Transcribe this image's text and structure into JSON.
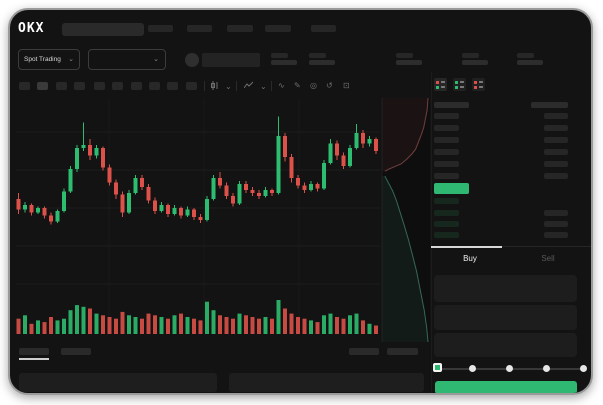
{
  "header": {
    "logo_text": "OKX"
  },
  "trading_controls": {
    "market_selector_label": "Spot Trading"
  },
  "order_panel": {
    "buy_tab_label": "Buy",
    "sell_tab_label": "Sell",
    "slider_steps": 5
  },
  "order_book": {
    "ask_rows": 6,
    "bid_rows": 4,
    "bid_right_bars": [
      false,
      true,
      true,
      true
    ]
  },
  "icons": {
    "chevron_down": "⌄",
    "wave": "∿",
    "pencil": "✎",
    "camera": "◎",
    "history": "↺",
    "fullscreen": "⊡"
  },
  "colors": {
    "accent_green": "#2eb872",
    "candle_up": "#2ebd70",
    "candle_down": "#dc5149",
    "depth_ask_line": "#8a4a4a",
    "depth_bid_line": "#3f7d6d",
    "depth_ask_fill": "rgba(150,70,70,0.10)",
    "depth_bid_fill": "rgba(60,150,120,0.10)",
    "bid_row_bar": "#16281e",
    "grid": "#1d1d1d"
  },
  "chart_data": {
    "type": "candlestick",
    "title": "",
    "xlabel": "",
    "ylabel": "",
    "grid": true,
    "legend_position": "none",
    "price_scale": [
      0,
      100
    ],
    "candles": [
      [
        38,
        42,
        28,
        31
      ],
      [
        31,
        36,
        29,
        34
      ],
      [
        34,
        35,
        27,
        29
      ],
      [
        29,
        33,
        28,
        32
      ],
      [
        32,
        33,
        25,
        27
      ],
      [
        27,
        29,
        21,
        23
      ],
      [
        23,
        31,
        22,
        30
      ],
      [
        30,
        45,
        29,
        43
      ],
      [
        43,
        60,
        42,
        58
      ],
      [
        58,
        74,
        56,
        72
      ],
      [
        72,
        89,
        70,
        74
      ],
      [
        74,
        78,
        64,
        67
      ],
      [
        67,
        74,
        65,
        72
      ],
      [
        72,
        73,
        57,
        59
      ],
      [
        59,
        61,
        47,
        49
      ],
      [
        49,
        51,
        38,
        41
      ],
      [
        41,
        43,
        26,
        29
      ],
      [
        29,
        44,
        28,
        42
      ],
      [
        42,
        54,
        41,
        52
      ],
      [
        52,
        54,
        44,
        46
      ],
      [
        46,
        48,
        35,
        37
      ],
      [
        37,
        39,
        28,
        30
      ],
      [
        30,
        36,
        29,
        34
      ],
      [
        34,
        35,
        26,
        28
      ],
      [
        28,
        34,
        27,
        32
      ],
      [
        32,
        33,
        25,
        27
      ],
      [
        27,
        33,
        26,
        31
      ],
      [
        31,
        32,
        24,
        26
      ],
      [
        26,
        28,
        22,
        24
      ],
      [
        24,
        40,
        23,
        38
      ],
      [
        38,
        54,
        37,
        52
      ],
      [
        52,
        56,
        45,
        47
      ],
      [
        47,
        49,
        38,
        40
      ],
      [
        40,
        42,
        33,
        35
      ],
      [
        35,
        50,
        34,
        48
      ],
      [
        48,
        50,
        42,
        44
      ],
      [
        44,
        46,
        40,
        42
      ],
      [
        42,
        44,
        38,
        40
      ],
      [
        40,
        46,
        39,
        44
      ],
      [
        44,
        45,
        40,
        42
      ],
      [
        42,
        93,
        41,
        80
      ],
      [
        80,
        82,
        63,
        66
      ],
      [
        66,
        68,
        49,
        52
      ],
      [
        52,
        54,
        45,
        47
      ],
      [
        47,
        49,
        42,
        44
      ],
      [
        44,
        50,
        43,
        48
      ],
      [
        48,
        49,
        43,
        45
      ],
      [
        45,
        64,
        44,
        62
      ],
      [
        62,
        78,
        61,
        75
      ],
      [
        75,
        77,
        64,
        67
      ],
      [
        67,
        69,
        58,
        60
      ],
      [
        60,
        74,
        59,
        72
      ],
      [
        72,
        88,
        71,
        82
      ],
      [
        82,
        84,
        72,
        75
      ],
      [
        75,
        80,
        73,
        78
      ],
      [
        78,
        79,
        68,
        70
      ]
    ],
    "volumes": [
      45,
      55,
      30,
      40,
      35,
      50,
      40,
      45,
      70,
      85,
      80,
      75,
      60,
      55,
      50,
      45,
      65,
      55,
      50,
      45,
      60,
      55,
      50,
      45,
      55,
      60,
      50,
      45,
      40,
      95,
      70,
      55,
      50,
      45,
      60,
      55,
      50,
      45,
      50,
      45,
      100,
      75,
      60,
      50,
      45,
      40,
      35,
      55,
      60,
      50,
      45,
      55,
      60,
      40,
      30,
      25
    ],
    "depth": {
      "asks": [
        [
          0.96,
          0.0
        ],
        [
          0.94,
          0.05
        ],
        [
          0.9,
          0.09
        ],
        [
          0.87,
          0.12
        ],
        [
          0.82,
          0.15
        ],
        [
          0.76,
          0.18
        ],
        [
          0.7,
          0.21
        ],
        [
          0.62,
          0.23
        ],
        [
          0.52,
          0.25
        ],
        [
          0.4,
          0.27
        ],
        [
          0.28,
          0.28
        ],
        [
          0.16,
          0.29
        ],
        [
          0.06,
          0.3
        ]
      ],
      "bids": [
        [
          0.06,
          0.32
        ],
        [
          0.14,
          0.35
        ],
        [
          0.22,
          0.38
        ],
        [
          0.3,
          0.42
        ],
        [
          0.38,
          0.47
        ],
        [
          0.46,
          0.52
        ],
        [
          0.55,
          0.58
        ],
        [
          0.63,
          0.64
        ],
        [
          0.72,
          0.71
        ],
        [
          0.8,
          0.79
        ],
        [
          0.88,
          0.87
        ],
        [
          0.93,
          0.94
        ],
        [
          0.96,
          1.0
        ]
      ]
    }
  }
}
